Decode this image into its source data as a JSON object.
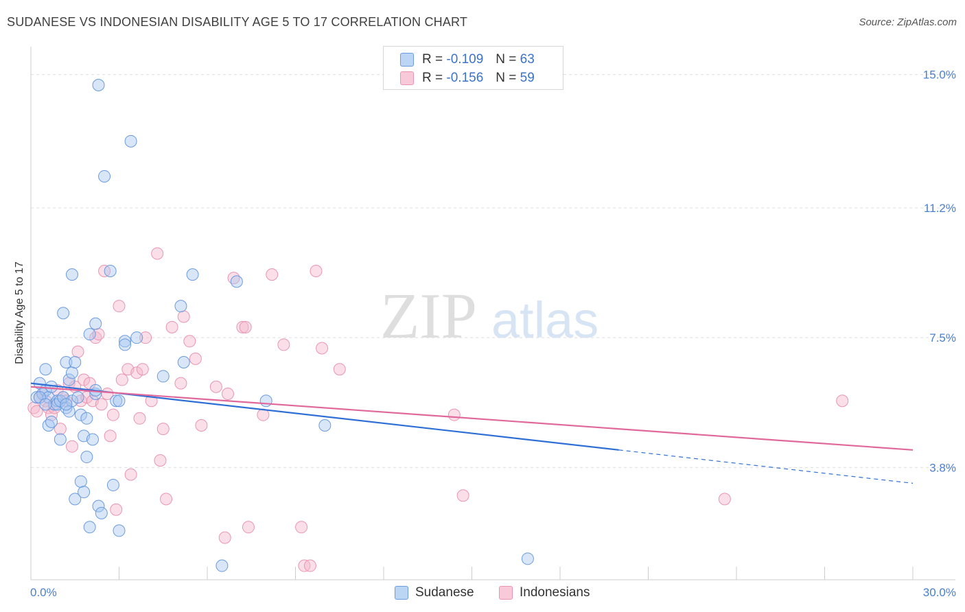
{
  "title": "SUDANESE VS INDONESIAN DISABILITY AGE 5 TO 17 CORRELATION CHART",
  "source": "Source: ZipAtlas.com",
  "watermark": {
    "zip": "ZIP",
    "atlas": "atlas"
  },
  "legend": {
    "rows": [
      {
        "r_label": "R =",
        "r_value": "-0.109",
        "n_label": "N =",
        "n_value": "63"
      },
      {
        "r_label": "R =",
        "r_value": "-0.156",
        "n_label": "N =",
        "n_value": "59"
      }
    ]
  },
  "bottom_legend": {
    "sudanese": "Sudanese",
    "indonesians": "Indonesians"
  },
  "colors": {
    "sudanese_fill": "#a9c8f0",
    "sudanese_stroke": "#6a9be0",
    "sudanese_line": "#2e6fd6",
    "indonesian_fill": "#f5b8cb",
    "indonesian_stroke": "#e995b0",
    "indonesian_line": "#e0689a",
    "axis_text": "#4a7fd0",
    "grid": "#dddddd"
  },
  "chart_data": {
    "type": "scatter",
    "title": "SUDANESE VS INDONESIAN DISABILITY AGE 5 TO 17 CORRELATION CHART",
    "xlabel": "",
    "ylabel": "Disability Age 5 to 17",
    "xlim": [
      0,
      30
    ],
    "ylim": [
      0.6,
      15.6
    ],
    "x_tick_labels": [
      "0.0%",
      "30.0%"
    ],
    "y_ticks": [
      3.8,
      7.5,
      11.2,
      15.0
    ],
    "y_tick_labels": [
      "3.8%",
      "7.5%",
      "11.2%",
      "15.0%"
    ],
    "series": [
      {
        "name": "Sudanese",
        "r": -0.109,
        "n": 63,
        "trend": {
          "x0": 0,
          "y0": 6.2,
          "x1": 20.0,
          "y1": 4.3,
          "x_dash_end": 30.0,
          "y_dash_end": 3.35
        },
        "points": [
          [
            0.2,
            5.8
          ],
          [
            0.3,
            6.2
          ],
          [
            0.4,
            5.9
          ],
          [
            0.5,
            6.0
          ],
          [
            0.6,
            5.8
          ],
          [
            0.7,
            6.1
          ],
          [
            0.8,
            5.6
          ],
          [
            0.9,
            5.7
          ],
          [
            0.5,
            6.6
          ],
          [
            0.6,
            5.0
          ],
          [
            0.7,
            5.1
          ],
          [
            0.9,
            5.6
          ],
          [
            1.0,
            5.7
          ],
          [
            1.1,
            5.8
          ],
          [
            1.2,
            5.5
          ],
          [
            1.3,
            5.4
          ],
          [
            1.0,
            4.6
          ],
          [
            1.1,
            8.2
          ],
          [
            1.2,
            6.8
          ],
          [
            1.3,
            6.3
          ],
          [
            1.4,
            6.5
          ],
          [
            1.4,
            5.7
          ],
          [
            1.5,
            6.8
          ],
          [
            1.6,
            5.8
          ],
          [
            1.7,
            5.3
          ],
          [
            1.8,
            4.7
          ],
          [
            1.9,
            5.2
          ],
          [
            1.9,
            4.1
          ],
          [
            1.7,
            3.4
          ],
          [
            1.5,
            2.9
          ],
          [
            1.4,
            9.3
          ],
          [
            1.8,
            3.1
          ],
          [
            2.0,
            7.6
          ],
          [
            2.2,
            7.9
          ],
          [
            2.1,
            4.6
          ],
          [
            2.2,
            5.9
          ],
          [
            2.3,
            2.7
          ],
          [
            2.4,
            2.5
          ],
          [
            2.0,
            2.1
          ],
          [
            2.2,
            6.0
          ],
          [
            2.3,
            14.7
          ],
          [
            2.5,
            12.1
          ],
          [
            2.7,
            9.4
          ],
          [
            2.8,
            3.3
          ],
          [
            2.9,
            5.7
          ],
          [
            3.0,
            5.7
          ],
          [
            3.0,
            2.0
          ],
          [
            3.2,
            7.4
          ],
          [
            3.2,
            7.3
          ],
          [
            3.4,
            13.1
          ],
          [
            3.6,
            7.5
          ],
          [
            4.5,
            6.4
          ],
          [
            5.1,
            8.4
          ],
          [
            5.2,
            6.8
          ],
          [
            5.5,
            9.3
          ],
          [
            6.5,
            1.0
          ],
          [
            7.0,
            9.1
          ],
          [
            8.0,
            5.7
          ],
          [
            10.0,
            5.0
          ],
          [
            16.9,
            1.2
          ],
          [
            0.3,
            5.8
          ],
          [
            0.5,
            5.6
          ],
          [
            1.2,
            5.6
          ]
        ]
      },
      {
        "name": "Indonesians",
        "r": -0.156,
        "n": 59,
        "trend": {
          "x0": 0,
          "y0": 6.1,
          "x1": 30.0,
          "y1": 4.3
        },
        "points": [
          [
            0.1,
            5.5
          ],
          [
            0.2,
            5.4
          ],
          [
            0.3,
            5.8
          ],
          [
            0.4,
            5.9
          ],
          [
            0.5,
            5.7
          ],
          [
            0.6,
            5.5
          ],
          [
            0.7,
            5.3
          ],
          [
            0.8,
            5.5
          ],
          [
            0.9,
            6.0
          ],
          [
            1.0,
            4.9
          ],
          [
            1.1,
            5.8
          ],
          [
            1.2,
            5.7
          ],
          [
            1.3,
            6.2
          ],
          [
            1.4,
            4.4
          ],
          [
            1.5,
            6.1
          ],
          [
            1.6,
            7.1
          ],
          [
            1.7,
            5.7
          ],
          [
            1.8,
            6.3
          ],
          [
            1.9,
            5.8
          ],
          [
            2.0,
            6.2
          ],
          [
            2.1,
            5.7
          ],
          [
            2.2,
            7.5
          ],
          [
            2.3,
            7.6
          ],
          [
            2.4,
            5.6
          ],
          [
            2.5,
            9.4
          ],
          [
            2.6,
            5.9
          ],
          [
            2.7,
            4.7
          ],
          [
            2.8,
            5.3
          ],
          [
            2.9,
            2.6
          ],
          [
            3.0,
            8.4
          ],
          [
            3.1,
            6.3
          ],
          [
            3.3,
            6.6
          ],
          [
            3.4,
            3.6
          ],
          [
            3.6,
            6.5
          ],
          [
            3.7,
            5.2
          ],
          [
            3.8,
            6.6
          ],
          [
            3.9,
            7.5
          ],
          [
            4.1,
            5.7
          ],
          [
            4.3,
            9.9
          ],
          [
            4.4,
            4.0
          ],
          [
            4.5,
            4.9
          ],
          [
            4.6,
            2.9
          ],
          [
            4.8,
            7.8
          ],
          [
            5.1,
            6.2
          ],
          [
            5.2,
            8.1
          ],
          [
            5.4,
            7.4
          ],
          [
            5.6,
            6.9
          ],
          [
            5.8,
            5.0
          ],
          [
            6.3,
            6.1
          ],
          [
            6.6,
            1.8
          ],
          [
            6.7,
            5.9
          ],
          [
            6.9,
            9.2
          ],
          [
            7.2,
            7.8
          ],
          [
            7.3,
            7.8
          ],
          [
            7.4,
            2.1
          ],
          [
            7.9,
            5.3
          ],
          [
            8.2,
            9.3
          ],
          [
            9.7,
            9.4
          ],
          [
            10.5,
            6.6
          ]
        ],
        "extra_points": [
          [
            8.6,
            7.3
          ],
          [
            9.2,
            2.1
          ],
          [
            9.3,
            1.0
          ],
          [
            9.5,
            1.0
          ],
          [
            14.4,
            5.3
          ],
          [
            14.7,
            3.0
          ],
          [
            23.6,
            2.9
          ],
          [
            27.6,
            5.7
          ],
          [
            9.9,
            7.2
          ]
        ]
      }
    ]
  }
}
